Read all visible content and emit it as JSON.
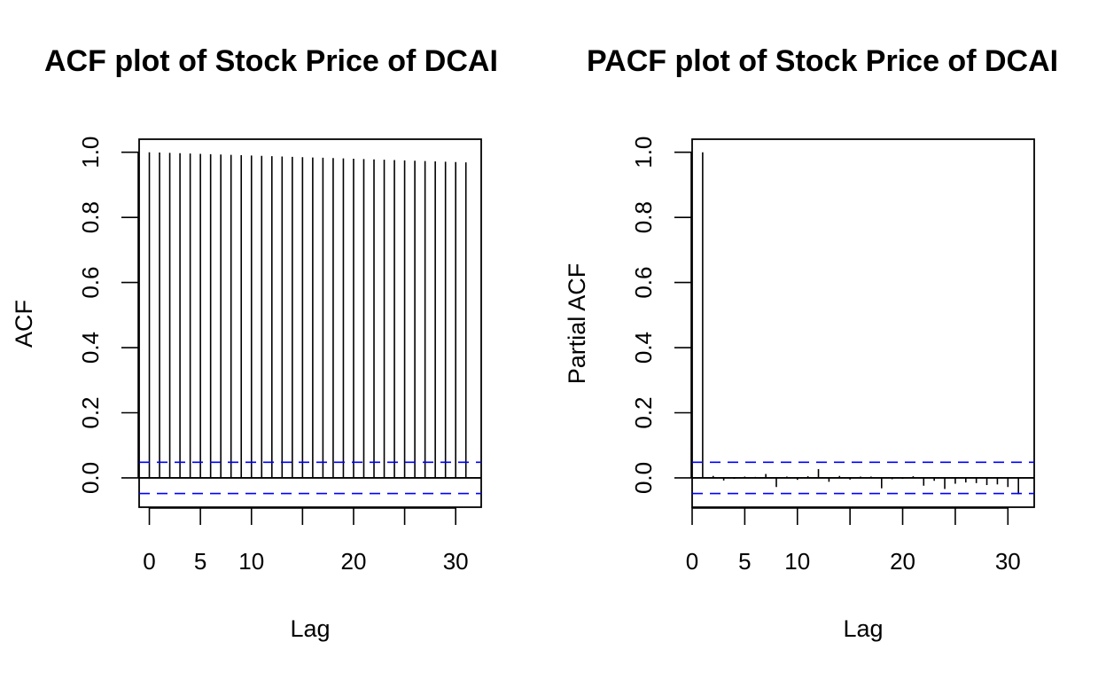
{
  "chart_data": [
    {
      "type": "bar",
      "title": "ACF plot of Stock Price of DCAI",
      "xlabel": "Lag",
      "ylabel": "ACF",
      "xlim": [
        -1,
        32.5
      ],
      "ylim": [
        -0.09,
        1.04
      ],
      "x_ticks": [
        0,
        5,
        10,
        15,
        20,
        25,
        30
      ],
      "x_tick_labels": [
        "0",
        "5",
        "10",
        "",
        "20",
        "",
        "30"
      ],
      "y_ticks": [
        0.0,
        0.2,
        0.4,
        0.6,
        0.8,
        1.0
      ],
      "y_tick_labels": [
        "0.0",
        "0.2",
        "0.4",
        "0.6",
        "0.8",
        "1.0"
      ],
      "confidence_bound": 0.048,
      "confidence_color": "#0000ff",
      "bar_color": "#000000",
      "grid": false,
      "lags": [
        0,
        1,
        2,
        3,
        4,
        5,
        6,
        7,
        8,
        9,
        10,
        11,
        12,
        13,
        14,
        15,
        16,
        17,
        18,
        19,
        20,
        21,
        22,
        23,
        24,
        25,
        26,
        27,
        28,
        29,
        30,
        31
      ],
      "values": [
        1.0,
        0.999,
        0.998,
        0.997,
        0.996,
        0.995,
        0.994,
        0.993,
        0.992,
        0.991,
        0.99,
        0.989,
        0.988,
        0.987,
        0.986,
        0.985,
        0.984,
        0.983,
        0.982,
        0.981,
        0.98,
        0.979,
        0.978,
        0.977,
        0.976,
        0.975,
        0.974,
        0.973,
        0.972,
        0.971,
        0.97,
        0.969
      ]
    },
    {
      "type": "bar",
      "title": "PACF plot of Stock Price of DCAI",
      "xlabel": "Lag",
      "ylabel": "Partial ACF",
      "xlim": [
        0,
        32.5
      ],
      "ylim": [
        -0.09,
        1.04
      ],
      "x_ticks": [
        0,
        5,
        10,
        15,
        20,
        25,
        30
      ],
      "x_tick_labels": [
        "0",
        "5",
        "10",
        "",
        "20",
        "",
        "30"
      ],
      "y_ticks": [
        0.0,
        0.2,
        0.4,
        0.6,
        0.8,
        1.0
      ],
      "y_tick_labels": [
        "0.0",
        "0.2",
        "0.4",
        "0.6",
        "0.8",
        "1.0"
      ],
      "confidence_bound": 0.048,
      "confidence_color": "#0000ff",
      "bar_color": "#000000",
      "grid": false,
      "lags": [
        1,
        2,
        3,
        4,
        5,
        6,
        7,
        8,
        9,
        10,
        11,
        12,
        13,
        14,
        15,
        16,
        17,
        18,
        19,
        20,
        21,
        22,
        23,
        24,
        25,
        26,
        27,
        28,
        29,
        30,
        31
      ],
      "values": [
        1.0,
        0.006,
        -0.008,
        -0.003,
        0.004,
        0.003,
        0.012,
        -0.028,
        0.004,
        -0.006,
        0.005,
        0.027,
        -0.012,
        0.006,
        -0.005,
        0.004,
        0.004,
        -0.032,
        -0.004,
        -0.003,
        0.005,
        -0.024,
        -0.009,
        -0.034,
        -0.018,
        -0.014,
        -0.016,
        -0.022,
        -0.02,
        -0.028,
        -0.05
      ]
    }
  ]
}
